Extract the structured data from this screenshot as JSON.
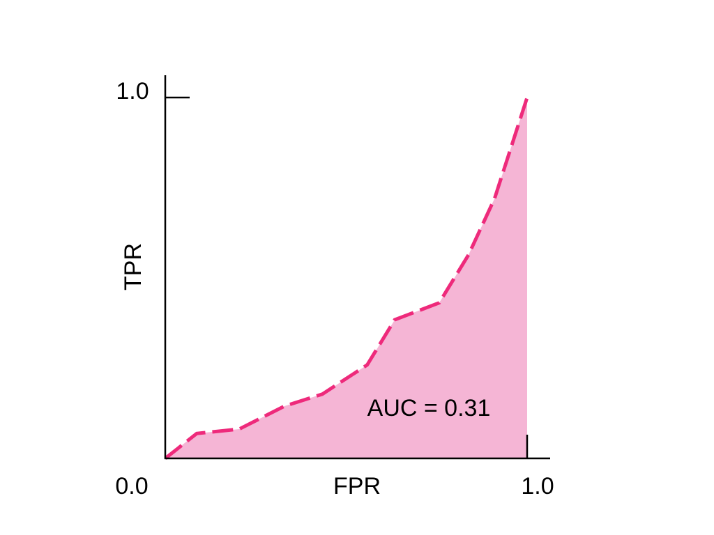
{
  "chart_data": {
    "type": "area",
    "xlabel": "FPR",
    "ylabel": "TPR",
    "xlim": [
      0,
      1
    ],
    "ylim": [
      0,
      1
    ],
    "x_tick_labels": [
      "0.0",
      "1.0"
    ],
    "y_tick_labels": [
      "1.0"
    ],
    "grid": false,
    "annotation": "AUC = 0.31",
    "line_style": "dashed",
    "colors": {
      "line": "#ee2a7b",
      "fill": "#f5b5d5",
      "axis": "#000000"
    },
    "x": [
      0,
      0.087,
      0.204,
      0.33,
      0.434,
      0.558,
      0.634,
      0.757,
      0.838,
      0.91,
      1.0
    ],
    "y": [
      0,
      0.069,
      0.081,
      0.145,
      0.178,
      0.259,
      0.384,
      0.431,
      0.564,
      0.72,
      1.0
    ]
  }
}
